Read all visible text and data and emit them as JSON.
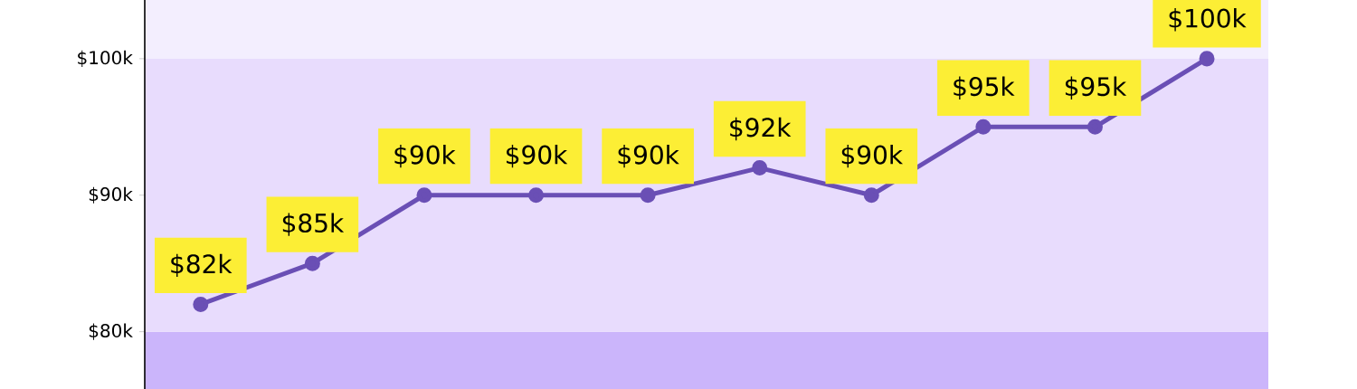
{
  "chart_data": {
    "type": "line",
    "categories": [
      null,
      null,
      null,
      null,
      null,
      null,
      null,
      null,
      null,
      null
    ],
    "values": [
      82,
      85,
      90,
      90,
      90,
      92,
      90,
      95,
      95,
      100
    ],
    "value_labels": [
      "$82k",
      "$85k",
      "$90k",
      "$90k",
      "$90k",
      "$92k",
      "$90k",
      "$95k",
      "$95k",
      "$100k"
    ],
    "color": "#6a4fb5",
    "marker": "circle",
    "line_style": "solid",
    "ylim": [
      75.8,
      104.3
    ],
    "yticks": [
      {
        "value": 80,
        "label": "$80k"
      },
      {
        "value": 90,
        "label": "$90k"
      },
      {
        "value": 100,
        "label": "$100k"
      }
    ],
    "bands": [
      {
        "axis": "y",
        "from": 75.8,
        "to": 80,
        "color": "#cbb5fb"
      },
      {
        "axis": "y",
        "from": 80,
        "to": 100,
        "color": "#e8dcfd"
      },
      {
        "axis": "y",
        "from": 100,
        "to": 104.3,
        "color": "#f3eefe"
      }
    ]
  }
}
